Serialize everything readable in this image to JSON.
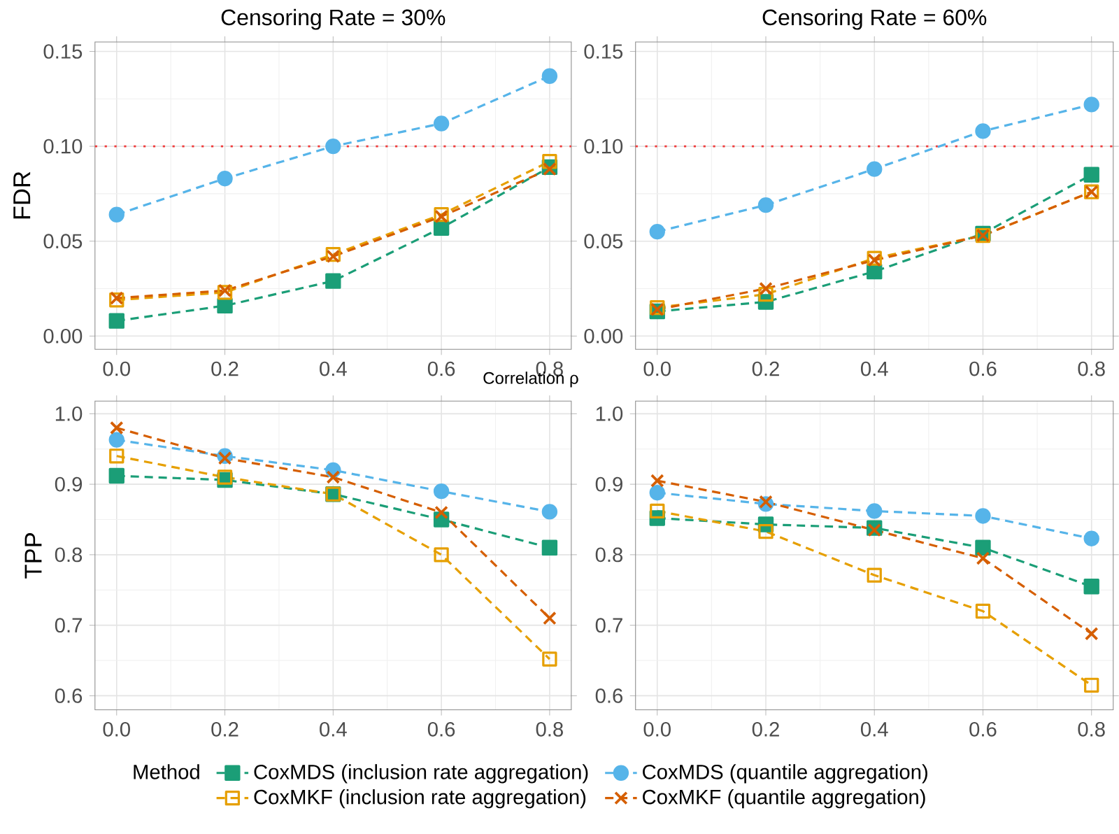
{
  "chart_data": [
    {
      "type": "line",
      "title": "Censoring Rate = 30%",
      "ylabel": "FDR",
      "xlabel": "Correlation ρ",
      "x": [
        0,
        0.2,
        0.4,
        0.6,
        0.8
      ],
      "xlim": [
        -0.04,
        0.84
      ],
      "ylim": [
        -0.007,
        0.155
      ],
      "xticks": [
        {
          "value": 0,
          "label": "0.0"
        },
        {
          "value": 0.2,
          "label": "0.2"
        },
        {
          "value": 0.4,
          "label": "0.4"
        },
        {
          "value": 0.6,
          "label": "0.6"
        },
        {
          "value": 0.8,
          "label": "0.8"
        }
      ],
      "yticks": [
        {
          "value": 0,
          "label": "0.00"
        },
        {
          "value": 0.05,
          "label": "0.05"
        },
        {
          "value": 0.1,
          "label": "0.10"
        },
        {
          "value": 0.15,
          "label": "0.15"
        }
      ],
      "grid": true,
      "line_style": "dashed",
      "ref_lines": [
        {
          "axis": "y",
          "value": 0.1,
          "color": "#f03a3a",
          "line_style": "dotted"
        }
      ],
      "series": [
        {
          "color": "#1b9e77",
          "marker": "square",
          "values": [
            0.008,
            0.016,
            0.029,
            0.057,
            0.089
          ]
        },
        {
          "color": "#e69f00",
          "marker": "square",
          "values": [
            0.019,
            0.023,
            0.043,
            0.064,
            0.092
          ]
        },
        {
          "color": "#56b4e9",
          "marker": "circle",
          "values": [
            0.064,
            0.083,
            0.1,
            0.112,
            0.137
          ]
        },
        {
          "color": "#d55e00",
          "marker": "cross",
          "values": [
            0.02,
            0.024,
            0.042,
            0.063,
            0.088
          ]
        }
      ]
    },
    {
      "type": "line",
      "title": "Censoring Rate = 60%",
      "x": [
        0,
        0.2,
        0.4,
        0.6,
        0.8
      ],
      "xlim": [
        -0.04,
        0.84
      ],
      "ylim": [
        -0.007,
        0.155
      ],
      "xticks": [
        {
          "value": 0,
          "label": "0.0"
        },
        {
          "value": 0.2,
          "label": "0.2"
        },
        {
          "value": 0.4,
          "label": "0.4"
        },
        {
          "value": 0.6,
          "label": "0.6"
        },
        {
          "value": 0.8,
          "label": "0.8"
        }
      ],
      "yticks": [
        {
          "value": 0,
          "label": "0.00"
        },
        {
          "value": 0.05,
          "label": "0.05"
        },
        {
          "value": 0.1,
          "label": "0.10"
        },
        {
          "value": 0.15,
          "label": "0.15"
        }
      ],
      "grid": true,
      "line_style": "dashed",
      "ref_lines": [
        {
          "axis": "y",
          "value": 0.1,
          "color": "#f03a3a",
          "line_style": "dotted"
        }
      ],
      "series": [
        {
          "color": "#1b9e77",
          "marker": "square",
          "values": [
            0.013,
            0.018,
            0.034,
            0.054,
            0.085
          ]
        },
        {
          "color": "#e69f00",
          "marker": "square",
          "values": [
            0.015,
            0.022,
            0.041,
            0.053,
            0.076
          ]
        },
        {
          "color": "#56b4e9",
          "marker": "circle",
          "values": [
            0.055,
            0.069,
            0.088,
            0.108,
            0.122
          ]
        },
        {
          "color": "#d55e00",
          "marker": "cross",
          "values": [
            0.014,
            0.025,
            0.04,
            0.053,
            0.076
          ]
        }
      ]
    },
    {
      "type": "line",
      "ylabel": "TPP",
      "x": [
        0,
        0.2,
        0.4,
        0.6,
        0.8
      ],
      "xlim": [
        -0.04,
        0.84
      ],
      "ylim": [
        0.58,
        1.018
      ],
      "xticks": [
        {
          "value": 0,
          "label": "0.0"
        },
        {
          "value": 0.2,
          "label": "0.2"
        },
        {
          "value": 0.4,
          "label": "0.4"
        },
        {
          "value": 0.6,
          "label": "0.6"
        },
        {
          "value": 0.8,
          "label": "0.8"
        }
      ],
      "yticks": [
        {
          "value": 0.6,
          "label": "0.6"
        },
        {
          "value": 0.7,
          "label": "0.7"
        },
        {
          "value": 0.8,
          "label": "0.8"
        },
        {
          "value": 0.9,
          "label": "0.9"
        },
        {
          "value": 1.0,
          "label": "1.0"
        }
      ],
      "grid": true,
      "line_style": "dashed",
      "series": [
        {
          "color": "#1b9e77",
          "marker": "square",
          "values": [
            0.912,
            0.906,
            0.886,
            0.85,
            0.81
          ]
        },
        {
          "color": "#e69f00",
          "marker": "square",
          "values": [
            0.94,
            0.91,
            0.886,
            0.8,
            0.652
          ]
        },
        {
          "color": "#56b4e9",
          "marker": "circle",
          "values": [
            0.963,
            0.94,
            0.92,
            0.89,
            0.861
          ]
        },
        {
          "color": "#d55e00",
          "marker": "cross",
          "values": [
            0.98,
            0.937,
            0.91,
            0.86,
            0.71
          ]
        }
      ]
    },
    {
      "type": "line",
      "x": [
        0,
        0.2,
        0.4,
        0.6,
        0.8
      ],
      "xlim": [
        -0.04,
        0.84
      ],
      "ylim": [
        0.58,
        1.018
      ],
      "xticks": [
        {
          "value": 0,
          "label": "0.0"
        },
        {
          "value": 0.2,
          "label": "0.2"
        },
        {
          "value": 0.4,
          "label": "0.4"
        },
        {
          "value": 0.6,
          "label": "0.6"
        },
        {
          "value": 0.8,
          "label": "0.8"
        }
      ],
      "yticks": [
        {
          "value": 0.6,
          "label": "0.6"
        },
        {
          "value": 0.7,
          "label": "0.7"
        },
        {
          "value": 0.8,
          "label": "0.8"
        },
        {
          "value": 0.9,
          "label": "0.9"
        },
        {
          "value": 1.0,
          "label": "1.0"
        }
      ],
      "grid": true,
      "line_style": "dashed",
      "legend": "bottom",
      "legend_title": "Method",
      "series": [
        {
          "name": "CoxMDS (inclusion rate aggregation)",
          "color": "#1b9e77",
          "marker": "square",
          "values": [
            0.852,
            0.843,
            0.838,
            0.81,
            0.755
          ]
        },
        {
          "name": "CoxMKF (inclusion rate aggregation)",
          "color": "#e69f00",
          "marker": "square",
          "values": [
            0.862,
            0.833,
            0.771,
            0.72,
            0.615
          ]
        },
        {
          "name": "CoxMDS (quantile aggregation)",
          "color": "#56b4e9",
          "marker": "circle",
          "values": [
            0.888,
            0.872,
            0.862,
            0.855,
            0.823
          ]
        },
        {
          "name": "CoxMKF (quantile aggregation)",
          "color": "#d55e00",
          "marker": "cross",
          "values": [
            0.905,
            0.875,
            0.835,
            0.795,
            0.688
          ]
        }
      ]
    }
  ]
}
